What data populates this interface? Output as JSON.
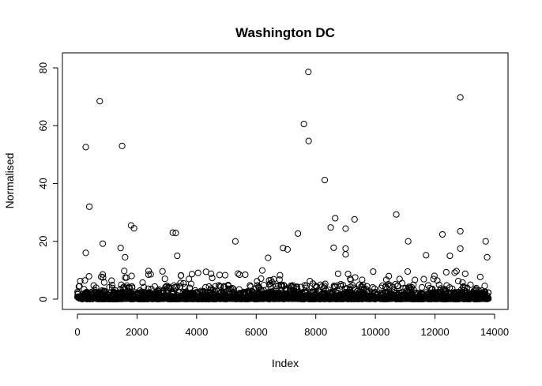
{
  "chart_data": {
    "type": "scatter",
    "title": "Washington DC",
    "xlabel": "Index",
    "ylabel": "Normalised",
    "xlim": [
      0,
      14000
    ],
    "ylim": [
      0,
      80
    ],
    "x_ticks": [
      0,
      2000,
      4000,
      6000,
      8000,
      10000,
      12000,
      14000
    ],
    "y_ticks": [
      0,
      20,
      40,
      60,
      80
    ],
    "x_tick_labels": [
      "0",
      "2000",
      "4000",
      "6000",
      "8000",
      "10000",
      "12000",
      "14000"
    ],
    "y_tick_labels": [
      "0",
      "20",
      "40",
      "60",
      "80"
    ],
    "grid": false,
    "legend": "none",
    "n_points": 13800,
    "notable_points": [
      {
        "x": 280,
        "y": 52.6
      },
      {
        "x": 400,
        "y": 32.0
      },
      {
        "x": 750,
        "y": 68.5
      },
      {
        "x": 1500,
        "y": 53.0
      },
      {
        "x": 7600,
        "y": 60.6
      },
      {
        "x": 7750,
        "y": 78.6
      },
      {
        "x": 7760,
        "y": 54.7
      },
      {
        "x": 8300,
        "y": 41.2
      },
      {
        "x": 12850,
        "y": 69.8
      },
      {
        "x": 850,
        "y": 19.2
      },
      {
        "x": 1800,
        "y": 25.5
      },
      {
        "x": 1900,
        "y": 24.5
      },
      {
        "x": 3200,
        "y": 23.0
      },
      {
        "x": 3300,
        "y": 22.9
      },
      {
        "x": 3350,
        "y": 15.0
      },
      {
        "x": 5300,
        "y": 20.0
      },
      {
        "x": 7400,
        "y": 22.7
      },
      {
        "x": 8500,
        "y": 24.8
      },
      {
        "x": 8650,
        "y": 28.0
      },
      {
        "x": 9000,
        "y": 24.4
      },
      {
        "x": 9300,
        "y": 27.6
      },
      {
        "x": 10700,
        "y": 29.3
      },
      {
        "x": 11100,
        "y": 20.0
      },
      {
        "x": 12250,
        "y": 22.4
      },
      {
        "x": 12850,
        "y": 23.5
      },
      {
        "x": 13700,
        "y": 20.0
      },
      {
        "x": 280,
        "y": 16.0
      },
      {
        "x": 1450,
        "y": 17.7
      },
      {
        "x": 1600,
        "y": 14.5
      },
      {
        "x": 9000,
        "y": 17.5
      },
      {
        "x": 9000,
        "y": 15.5
      },
      {
        "x": 11700,
        "y": 15.2
      },
      {
        "x": 12500,
        "y": 15.0
      },
      {
        "x": 6900,
        "y": 17.7
      },
      {
        "x": 7050,
        "y": 17.2
      },
      {
        "x": 6400,
        "y": 14.3
      },
      {
        "x": 8600,
        "y": 17.8
      },
      {
        "x": 13750,
        "y": 14.5
      },
      {
        "x": 12850,
        "y": 17.5
      }
    ]
  }
}
